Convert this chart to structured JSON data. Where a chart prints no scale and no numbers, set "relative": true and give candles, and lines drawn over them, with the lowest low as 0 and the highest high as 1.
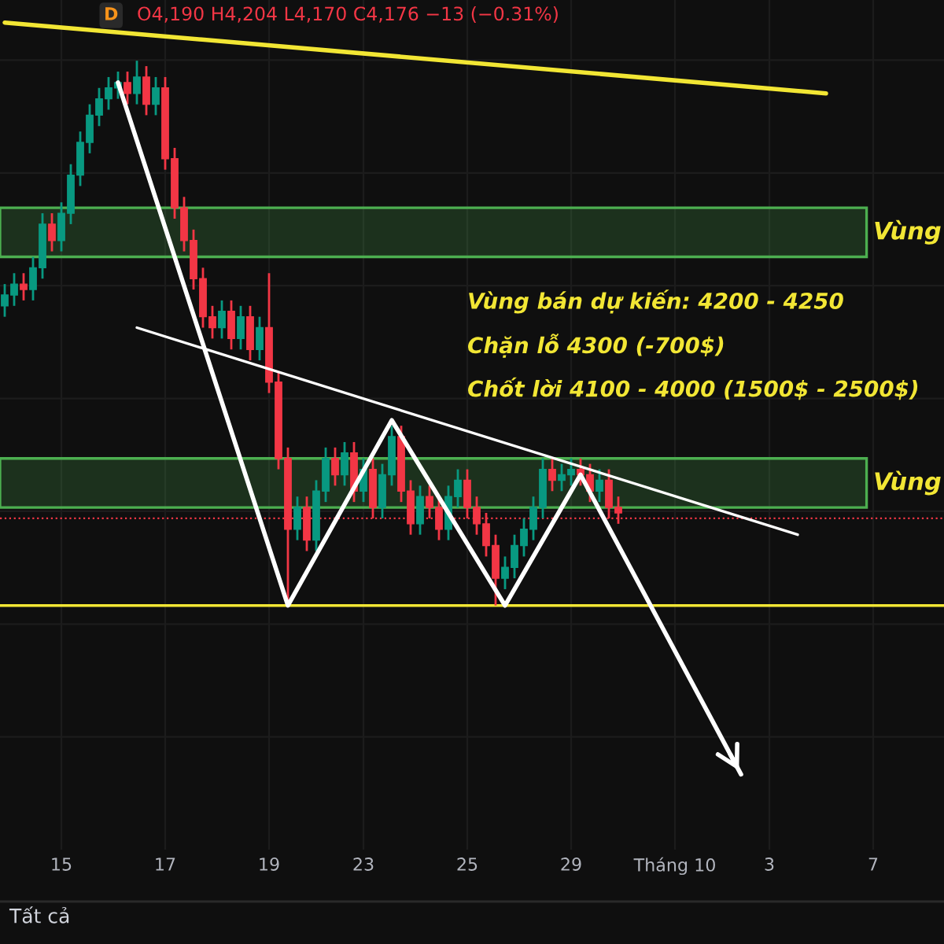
{
  "chart_data": {
    "type": "candlestick",
    "relative": true,
    "categories": [
      null,
      null,
      null,
      null,
      null,
      null,
      "15",
      null,
      null,
      null,
      null,
      null,
      null,
      null,
      null,
      null,
      null,
      "17",
      null,
      null,
      null,
      null,
      null,
      null,
      null,
      null,
      null,
      null,
      "19",
      null,
      null,
      null,
      null,
      null,
      null,
      null,
      null,
      null,
      "23",
      null,
      null,
      null,
      null,
      null,
      null,
      null,
      null,
      null,
      null,
      "25",
      null,
      null,
      null,
      null,
      null,
      null,
      null,
      null,
      null,
      null,
      "29",
      null,
      null,
      null,
      null,
      null,
      null,
      null,
      null,
      null,
      null,
      "Tháng 10",
      null,
      null,
      null,
      null,
      null,
      null,
      null,
      null,
      null,
      "3",
      null,
      null,
      null,
      null,
      null,
      null,
      null,
      null,
      null,
      null,
      "7",
      null,
      null,
      null,
      null,
      null,
      null,
      null
    ],
    "ohlc": [
      [
        0.55,
        0.59,
        0.53,
        0.57
      ],
      [
        0.57,
        0.61,
        0.55,
        0.59
      ],
      [
        0.59,
        0.61,
        0.56,
        0.58
      ],
      [
        0.58,
        0.64,
        0.56,
        0.62
      ],
      [
        0.62,
        0.72,
        0.6,
        0.7
      ],
      [
        0.7,
        0.72,
        0.65,
        0.67
      ],
      [
        0.67,
        0.74,
        0.65,
        0.72
      ],
      [
        0.72,
        0.81,
        0.7,
        0.79
      ],
      [
        0.79,
        0.87,
        0.77,
        0.85
      ],
      [
        0.85,
        0.92,
        0.83,
        0.9
      ],
      [
        0.9,
        0.95,
        0.88,
        0.93
      ],
      [
        0.93,
        0.97,
        0.91,
        0.95
      ],
      [
        0.95,
        0.98,
        0.93,
        0.96
      ],
      [
        0.96,
        0.98,
        0.92,
        0.94
      ],
      [
        0.94,
        1.0,
        0.92,
        0.97
      ],
      [
        0.97,
        0.99,
        0.9,
        0.92
      ],
      [
        0.92,
        0.97,
        0.9,
        0.95
      ],
      [
        0.95,
        0.97,
        0.8,
        0.82
      ],
      [
        0.82,
        0.84,
        0.71,
        0.73
      ],
      [
        0.73,
        0.75,
        0.65,
        0.67
      ],
      [
        0.67,
        0.69,
        0.58,
        0.6
      ],
      [
        0.6,
        0.62,
        0.51,
        0.53
      ],
      [
        0.53,
        0.55,
        0.49,
        0.51
      ],
      [
        0.51,
        0.56,
        0.49,
        0.54
      ],
      [
        0.54,
        0.56,
        0.47,
        0.49
      ],
      [
        0.49,
        0.55,
        0.47,
        0.53
      ],
      [
        0.53,
        0.55,
        0.45,
        0.47
      ],
      [
        0.47,
        0.53,
        0.45,
        0.51
      ],
      [
        0.51,
        0.61,
        0.39,
        0.41
      ],
      [
        0.41,
        0.43,
        0.25,
        0.27
      ],
      [
        0.27,
        0.29,
        0.01,
        0.14
      ],
      [
        0.14,
        0.2,
        0.12,
        0.18
      ],
      [
        0.18,
        0.2,
        0.1,
        0.12
      ],
      [
        0.12,
        0.23,
        0.1,
        0.21
      ],
      [
        0.21,
        0.29,
        0.19,
        0.27
      ],
      [
        0.27,
        0.29,
        0.22,
        0.24
      ],
      [
        0.24,
        0.3,
        0.22,
        0.28
      ],
      [
        0.28,
        0.3,
        0.19,
        0.21
      ],
      [
        0.21,
        0.27,
        0.19,
        0.25
      ],
      [
        0.25,
        0.27,
        0.16,
        0.18
      ],
      [
        0.18,
        0.26,
        0.16,
        0.24
      ],
      [
        0.24,
        0.33,
        0.22,
        0.31
      ],
      [
        0.31,
        0.33,
        0.19,
        0.21
      ],
      [
        0.21,
        0.23,
        0.13,
        0.15
      ],
      [
        0.15,
        0.22,
        0.13,
        0.2
      ],
      [
        0.2,
        0.22,
        0.16,
        0.18
      ],
      [
        0.18,
        0.2,
        0.12,
        0.14
      ],
      [
        0.14,
        0.22,
        0.12,
        0.2
      ],
      [
        0.2,
        0.25,
        0.18,
        0.23
      ],
      [
        0.23,
        0.25,
        0.16,
        0.18
      ],
      [
        0.18,
        0.2,
        0.13,
        0.15
      ],
      [
        0.15,
        0.17,
        0.09,
        0.11
      ],
      [
        0.11,
        0.13,
        0.0,
        0.05
      ],
      [
        0.05,
        0.09,
        0.03,
        0.07
      ],
      [
        0.07,
        0.13,
        0.05,
        0.11
      ],
      [
        0.11,
        0.16,
        0.09,
        0.14
      ],
      [
        0.14,
        0.2,
        0.12,
        0.18
      ],
      [
        0.18,
        0.27,
        0.16,
        0.25
      ],
      [
        0.25,
        0.27,
        0.21,
        0.23
      ],
      [
        0.23,
        0.26,
        0.21,
        0.24
      ],
      [
        0.24,
        0.27,
        0.22,
        0.25
      ],
      [
        0.25,
        0.27,
        0.22,
        0.24
      ],
      [
        0.24,
        0.26,
        0.19,
        0.21
      ],
      [
        0.21,
        0.25,
        0.19,
        0.23
      ],
      [
        0.23,
        0.25,
        0.16,
        0.18
      ],
      [
        0.18,
        0.2,
        0.15,
        0.17
      ],
      null,
      null,
      null,
      null,
      null,
      null,
      null,
      null,
      null,
      null,
      null,
      null,
      null,
      null,
      null,
      null,
      null,
      null,
      null,
      null,
      null,
      null,
      null,
      null,
      null,
      null,
      null,
      null,
      null,
      null,
      null,
      null,
      null,
      null
    ],
    "grid": true,
    "series": [
      {
        "type": "line",
        "color": "#f2e634",
        "values": [
          1.07,
          null,
          null,
          null,
          null,
          null,
          null,
          null,
          null,
          null,
          null,
          null,
          null,
          null,
          null,
          null,
          null,
          null,
          null,
          null,
          null,
          null,
          null,
          null,
          null,
          null,
          null,
          null,
          null,
          null,
          null,
          null,
          null,
          null,
          null,
          null,
          null,
          null,
          null,
          null,
          null,
          null,
          null,
          null,
          null,
          null,
          null,
          null,
          null,
          null,
          null,
          null,
          null,
          null,
          null,
          null,
          null,
          null,
          null,
          null,
          null,
          null,
          null,
          null,
          null,
          null,
          null,
          null,
          null,
          null,
          null,
          null,
          null,
          null,
          null,
          null,
          null,
          null,
          null,
          null,
          null,
          null,
          null,
          null,
          null,
          null,
          null,
          0.94,
          null,
          null,
          null,
          null,
          null,
          null,
          null,
          null,
          null,
          null,
          null,
          null
        ]
      },
      {
        "type": "line",
        "color": "#ffffff",
        "values": [
          null,
          null,
          null,
          null,
          null,
          null,
          null,
          null,
          null,
          null,
          null,
          null,
          null,
          null,
          0.51,
          null,
          null,
          null,
          null,
          null,
          null,
          null,
          null,
          null,
          null,
          null,
          null,
          null,
          null,
          null,
          null,
          null,
          null,
          null,
          null,
          null,
          null,
          null,
          null,
          null,
          null,
          null,
          null,
          null,
          null,
          null,
          null,
          null,
          null,
          null,
          null,
          null,
          null,
          null,
          null,
          null,
          null,
          null,
          null,
          null,
          null,
          null,
          null,
          null,
          null,
          null,
          null,
          null,
          null,
          null,
          null,
          null,
          null,
          null,
          null,
          null,
          null,
          null,
          null,
          null,
          null,
          null,
          null,
          null,
          0.13,
          null,
          null,
          null,
          null,
          null,
          null,
          null,
          null,
          null,
          null,
          null,
          null,
          null,
          null,
          null
        ]
      },
      {
        "type": "line",
        "color": "#ffffff",
        "values": [
          null,
          null,
          null,
          null,
          null,
          null,
          null,
          null,
          null,
          null,
          null,
          null,
          0.96,
          null,
          null,
          null,
          null,
          null,
          null,
          null,
          null,
          null,
          null,
          null,
          null,
          null,
          null,
          null,
          null,
          null,
          0.0,
          null,
          null,
          null,
          null,
          null,
          null,
          null,
          null,
          null,
          null,
          0.34,
          null,
          null,
          null,
          null,
          null,
          null,
          null,
          null,
          null,
          null,
          null,
          0.0,
          null,
          null,
          null,
          null,
          null,
          null,
          null,
          0.24,
          null,
          null,
          null,
          null,
          null,
          null,
          null,
          null,
          null,
          null,
          null,
          null,
          null,
          null,
          null,
          null,
          -0.31,
          null,
          null,
          null,
          null,
          null,
          null,
          null,
          null,
          null,
          null,
          null,
          null,
          null,
          null,
          null,
          null,
          null,
          null,
          null,
          null,
          null
        ]
      }
    ],
    "bands": [
      {
        "axis": "y",
        "from": 0.64,
        "to": 0.73,
        "label": "Vùng",
        "color": "#4caf50"
      },
      {
        "axis": "y",
        "from": 0.18,
        "to": 0.27,
        "label": "Vùng",
        "color": "#4caf50"
      }
    ],
    "ref_lines": [
      {
        "axis": "y",
        "value": 0,
        "color": "#f2e634",
        "line_style": "solid"
      },
      {
        "axis": "y",
        "value": 0.16,
        "color": "#f23645",
        "line_style": "dotted"
      }
    ],
    "annotations": [
      "D",
      "O4,190 H4,204 L4,170 C4,176 −13 (−0.31%)",
      "Vùng bán dự kiến: 4200 - 4250",
      "Chặn lỗ 4300 (-700$)",
      "Chốt lời 4100 - 4000 (1500$ - 2500$)",
      "Tất cả"
    ]
  }
}
